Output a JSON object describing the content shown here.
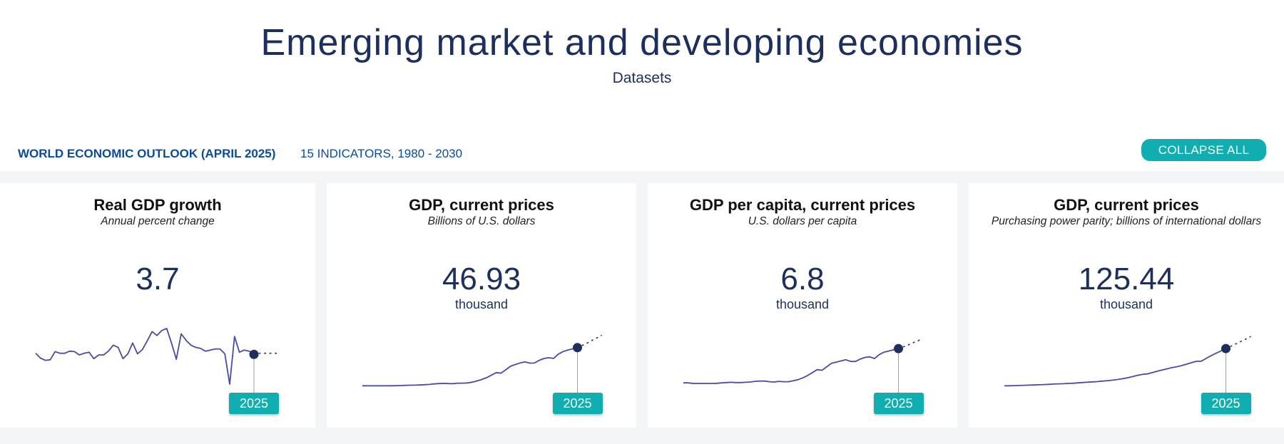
{
  "header": {
    "title": "Emerging market and developing economies",
    "subtitle": "Datasets"
  },
  "dataset_bar": {
    "dataset_name": "WORLD ECONOMIC OUTLOOK (APRIL 2025)",
    "indicators_label": "15 INDICATORS, 1980 - 2030",
    "collapse_label": "COLLAPSE ALL"
  },
  "colors": {
    "title": "#1c2f5e",
    "accent": "#10aeb0",
    "line": "#4a4aa8",
    "marker": "#1c2f5e"
  },
  "chart_data": [
    {
      "type": "line",
      "title": "Real GDP growth",
      "unit": "Annual percent change",
      "value": "3.7",
      "scale": "",
      "selected_year": "2025",
      "x": [
        1980,
        1981,
        1982,
        1983,
        1984,
        1985,
        1986,
        1987,
        1988,
        1989,
        1990,
        1991,
        1992,
        1993,
        1994,
        1995,
        1996,
        1997,
        1998,
        1999,
        2000,
        2001,
        2002,
        2003,
        2004,
        2005,
        2006,
        2007,
        2008,
        2009,
        2010,
        2011,
        2012,
        2013,
        2014,
        2015,
        2016,
        2017,
        2018,
        2019,
        2020,
        2021,
        2022,
        2023,
        2024,
        2025,
        2026,
        2027,
        2028,
        2029,
        2030
      ],
      "values": [
        3.9,
        3.0,
        2.6,
        2.7,
        4.2,
        3.9,
        3.9,
        4.3,
        4.2,
        3.6,
        3.9,
        4.1,
        2.9,
        3.6,
        3.6,
        4.3,
        5.4,
        5.0,
        2.9,
        3.8,
        5.8,
        3.8,
        4.6,
        6.2,
        7.9,
        7.2,
        8.1,
        8.5,
        5.8,
        2.8,
        7.5,
        6.3,
        5.4,
        5.0,
        4.8,
        4.3,
        4.5,
        4.7,
        4.7,
        3.8,
        -1.8,
        7.0,
        4.1,
        4.5,
        4.3,
        3.7,
        3.9,
        3.9,
        3.9,
        3.9,
        3.9
      ],
      "projection_from": 2026,
      "ylim": [
        -2.2,
        9.0
      ]
    },
    {
      "type": "line",
      "title": "GDP, current prices",
      "unit": "Billions of U.S. dollars",
      "value": "46.93",
      "scale": "thousand",
      "selected_year": "2025",
      "x": [
        1980,
        1981,
        1982,
        1983,
        1984,
        1985,
        1986,
        1987,
        1988,
        1989,
        1990,
        1991,
        1992,
        1993,
        1994,
        1995,
        1996,
        1997,
        1998,
        1999,
        2000,
        2001,
        2002,
        2003,
        2004,
        2005,
        2006,
        2007,
        2008,
        2009,
        2010,
        2011,
        2012,
        2013,
        2014,
        2015,
        2016,
        2017,
        2018,
        2019,
        2020,
        2021,
        2022,
        2023,
        2024,
        2025,
        2026,
        2027,
        2028,
        2029,
        2030
      ],
      "values": [
        3.0,
        3.0,
        3.0,
        3.0,
        3.0,
        3.0,
        3.0,
        3.1,
        3.3,
        3.5,
        3.7,
        3.8,
        4.0,
        4.3,
        4.6,
        5.2,
        5.6,
        5.8,
        5.6,
        5.5,
        6.1,
        6.1,
        6.3,
        7.2,
        8.6,
        10.3,
        12.4,
        15.3,
        18.2,
        17.6,
        21.4,
        25.5,
        27.5,
        29.3,
        30.5,
        29.1,
        29.2,
        32.3,
        34.5,
        35.4,
        34.5,
        39.5,
        42.4,
        44.2,
        45.5,
        46.93,
        49.5,
        52.2,
        55.1,
        58.0,
        61.0
      ],
      "projection_from": 2026,
      "ylim": [
        0,
        64
      ]
    },
    {
      "type": "line",
      "title": "GDP per capita, current prices",
      "unit": "U.S. dollars per capita",
      "value": "6.8",
      "scale": "thousand",
      "selected_year": "2025",
      "x": [
        1980,
        1981,
        1982,
        1983,
        1984,
        1985,
        1986,
        1987,
        1988,
        1989,
        1990,
        1991,
        1992,
        1993,
        1994,
        1995,
        1996,
        1997,
        1998,
        1999,
        2000,
        2001,
        2002,
        2003,
        2004,
        2005,
        2006,
        2007,
        2008,
        2009,
        2010,
        2011,
        2012,
        2013,
        2014,
        2015,
        2016,
        2017,
        2018,
        2019,
        2020,
        2021,
        2022,
        2023,
        2024,
        2025,
        2026,
        2027,
        2028,
        2029,
        2030
      ],
      "values": [
        0.95,
        0.95,
        0.85,
        0.85,
        0.85,
        0.85,
        0.85,
        0.88,
        0.95,
        1.0,
        1.05,
        1.0,
        1.0,
        1.05,
        1.1,
        1.2,
        1.25,
        1.25,
        1.15,
        1.1,
        1.2,
        1.15,
        1.15,
        1.3,
        1.5,
        1.8,
        2.2,
        2.7,
        3.2,
        3.1,
        3.7,
        4.3,
        4.5,
        4.7,
        4.9,
        4.6,
        4.6,
        5.0,
        5.3,
        5.4,
        5.1,
        5.8,
        6.2,
        6.4,
        6.6,
        6.8,
        7.1,
        7.4,
        7.8,
        8.1,
        8.5
      ],
      "projection_from": 2026,
      "ylim": [
        0,
        9.5
      ]
    },
    {
      "type": "line",
      "title": "GDP, current prices",
      "unit": "Purchasing power parity; billions of international dollars",
      "value": "125.44",
      "scale": "thousand",
      "selected_year": "2025",
      "x": [
        1980,
        1981,
        1982,
        1983,
        1984,
        1985,
        1986,
        1987,
        1988,
        1989,
        1990,
        1991,
        1992,
        1993,
        1994,
        1995,
        1996,
        1997,
        1998,
        1999,
        2000,
        2001,
        2002,
        2003,
        2004,
        2005,
        2006,
        2007,
        2008,
        2009,
        2010,
        2011,
        2012,
        2013,
        2014,
        2015,
        2016,
        2017,
        2018,
        2019,
        2020,
        2021,
        2022,
        2023,
        2024,
        2025,
        2026,
        2027,
        2028,
        2029,
        2030
      ],
      "values": [
        8.0,
        8.4,
        8.8,
        9.2,
        9.8,
        10.3,
        10.8,
        11.4,
        12.1,
        12.8,
        13.7,
        14.3,
        14.8,
        15.6,
        16.4,
        17.5,
        18.6,
        19.8,
        20.6,
        21.5,
        23.2,
        24.5,
        26.0,
        28.0,
        30.6,
        33.5,
        37.0,
        40.8,
        44.0,
        45.6,
        49.5,
        53.8,
        57.6,
        61.4,
        65.2,
        68.3,
        71.8,
        76.2,
        81.0,
        85.2,
        85.8,
        94.5,
        103.0,
        110.5,
        118.0,
        125.44,
        132.5,
        140.0,
        147.5,
        155.0,
        163.0
      ],
      "projection_from": 2026,
      "ylim": [
        0,
        175
      ]
    }
  ]
}
